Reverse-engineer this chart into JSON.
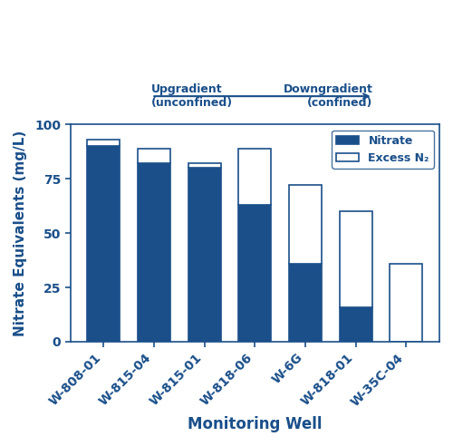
{
  "categories": [
    "W-808-01",
    "W-815-04",
    "W-815-01",
    "W-818-06",
    "W-6G",
    "W-818-01",
    "W-35C-04"
  ],
  "nitrate": [
    90,
    82,
    80,
    63,
    36,
    16,
    0
  ],
  "excess_n2": [
    3,
    7,
    2,
    26,
    36,
    44,
    36
  ],
  "bar_color_nitrate": "#1a4f8a",
  "bar_color_excess": "#ffffff",
  "bar_edge_color": "#1a4f8a",
  "bar_edge_width": 1.2,
  "ylabel": "Nitrate Equivalents (mg/L)",
  "xlabel": "Monitoring Well",
  "xlabel_fontsize": 12,
  "ylabel_fontsize": 11,
  "tick_fontsize": 10,
  "ylim": [
    0,
    100
  ],
  "yticks": [
    0,
    25,
    50,
    75,
    100
  ],
  "text_color": "#1a4f8a",
  "arrow_text_left": "Upgradient\n(unconfined)",
  "arrow_text_right": "Downgradient\n(confined)",
  "legend_labels": [
    "Nitrate",
    "Excess N₂"
  ],
  "background_color": "#ffffff"
}
